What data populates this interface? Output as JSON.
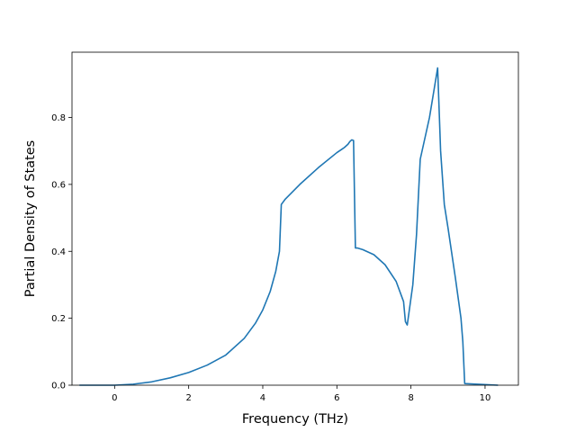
{
  "chart_data": {
    "type": "line",
    "title": "",
    "xlabel": "Frequency (THz)",
    "ylabel": "Partial Density of States",
    "xlim": [
      -1.15,
      10.9
    ],
    "ylim": [
      0.0,
      0.995
    ],
    "x_ticks": [
      0,
      2,
      4,
      6,
      8,
      10
    ],
    "y_ticks": [
      0.0,
      0.2,
      0.4,
      0.6,
      0.8
    ],
    "x_tick_labels": [
      "0",
      "2",
      "4",
      "6",
      "8",
      "10"
    ],
    "y_tick_labels": [
      "0.0",
      "0.2",
      "0.4",
      "0.6",
      "0.8"
    ],
    "grid": false,
    "legend": "none",
    "line_color": "#1f77b4",
    "series": [
      {
        "x": [
          -0.95,
          -0.5,
          0.0,
          0.5,
          1.0,
          1.5,
          2.0,
          2.5,
          3.0,
          3.5,
          3.8,
          4.0,
          4.2,
          4.35,
          4.45,
          4.5,
          4.6,
          5.0,
          5.5,
          6.0,
          6.2,
          6.3,
          6.35,
          6.4,
          6.45,
          6.5,
          6.55,
          6.7,
          7.0,
          7.3,
          7.6,
          7.8,
          7.85,
          7.9,
          7.95,
          8.05,
          8.15,
          8.25,
          8.5,
          8.72,
          8.8,
          8.9,
          9.0,
          9.2,
          9.35,
          9.4,
          9.45,
          10.35
        ],
        "y": [
          0.0,
          0.0,
          0.0,
          0.003,
          0.01,
          0.022,
          0.038,
          0.06,
          0.09,
          0.14,
          0.185,
          0.225,
          0.28,
          0.34,
          0.4,
          0.54,
          0.555,
          0.6,
          0.65,
          0.695,
          0.71,
          0.72,
          0.728,
          0.733,
          0.731,
          0.41,
          0.41,
          0.405,
          0.39,
          0.36,
          0.31,
          0.25,
          0.19,
          0.18,
          0.22,
          0.3,
          0.45,
          0.675,
          0.8,
          0.948,
          0.7,
          0.54,
          0.47,
          0.32,
          0.2,
          0.13,
          0.005,
          0.0
        ]
      }
    ]
  }
}
